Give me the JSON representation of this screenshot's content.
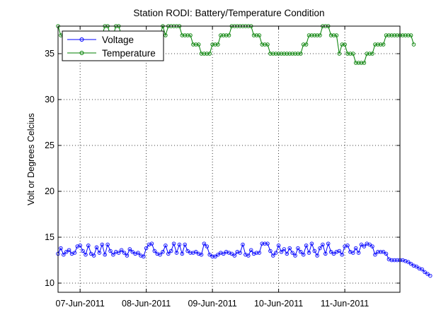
{
  "chart_data": {
    "type": "line",
    "title": "Station RODI: Battery/Temperature Condition",
    "xlabel": "",
    "ylabel": "Volt or Degrees Celcius",
    "x_axis": {
      "kind": "date",
      "range": [
        "2011-06-06 16:00",
        "2011-06-11 20:00"
      ],
      "ticks": [
        {
          "date": "2011-06-07",
          "label": "07-Jun-2011"
        },
        {
          "date": "2011-06-08",
          "label": "08-Jun-2011"
        },
        {
          "date": "2011-06-09",
          "label": "09-Jun-2011"
        },
        {
          "date": "2011-06-10",
          "label": "10-Jun-2011"
        },
        {
          "date": "2011-06-11",
          "label": "11-Jun-2011"
        }
      ]
    },
    "ylim": [
      9,
      38
    ],
    "yticks": [
      10,
      15,
      20,
      25,
      30,
      35
    ],
    "grid": true,
    "grid_style": "dotted",
    "legend_position": "top-left",
    "sampling": {
      "start": "2011-06-06 16:00",
      "step_hours": 1
    },
    "series": [
      {
        "name": "Voltage",
        "color": "#0000ff",
        "marker": "circle",
        "values": [
          13.2,
          13.8,
          13.1,
          13.4,
          13.6,
          13.2,
          13.3,
          14.0,
          14.1,
          13.5,
          13.1,
          14.1,
          13.2,
          13.0,
          13.9,
          13.3,
          14.2,
          13.1,
          14.2,
          13.5,
          13.1,
          13.4,
          13.3,
          13.6,
          13.3,
          13.0,
          13.7,
          13.4,
          13.2,
          13.3,
          13.0,
          12.9,
          13.8,
          14.2,
          14.3,
          13.5,
          13.2,
          13.1,
          13.4,
          14.1,
          13.2,
          13.5,
          14.3,
          13.3,
          14.2,
          13.2,
          14.2,
          13.5,
          13.3,
          13.3,
          13.4,
          13.2,
          13.1,
          14.3,
          14.0,
          13.1,
          12.9,
          12.9,
          13.1,
          13.3,
          13.2,
          13.4,
          13.3,
          13.2,
          13.0,
          13.4,
          13.3,
          14.2,
          13.1,
          13.0,
          13.6,
          13.2,
          13.3,
          13.3,
          14.3,
          14.3,
          14.3,
          13.5,
          13.0,
          13.3,
          14.1,
          13.4,
          13.7,
          13.2,
          13.8,
          13.3,
          13.0,
          13.8,
          13.4,
          13.1,
          14.1,
          13.3,
          14.3,
          13.5,
          13.0,
          13.8,
          14.2,
          13.2,
          14.3,
          13.4,
          13.2,
          13.4,
          13.5,
          13.1,
          14.0,
          14.1,
          13.4,
          13.3,
          13.8,
          13.3,
          14.2,
          14.0,
          14.3,
          14.2,
          14.0,
          13.1,
          13.4,
          13.4,
          13.4,
          13.2,
          12.6,
          12.5,
          12.5,
          12.5,
          12.5,
          12.5,
          12.4,
          12.3,
          12.1,
          11.9,
          11.8,
          11.6,
          11.5,
          11.2,
          11.0,
          10.8
        ]
      },
      {
        "name": "Temperature",
        "color": "#007f00",
        "marker": "circle",
        "values": [
          38,
          37,
          37,
          37,
          37,
          37,
          37,
          37,
          37,
          37,
          37,
          37,
          37,
          37,
          37,
          37,
          37,
          38,
          38,
          37,
          37,
          38,
          38,
          37,
          37,
          37,
          37,
          37,
          37,
          37,
          37,
          37,
          37,
          37,
          37,
          37,
          37,
          37,
          38,
          37,
          38,
          38,
          38,
          38,
          38,
          37,
          37,
          37,
          37,
          36,
          36,
          36,
          35,
          35,
          35,
          35,
          36,
          36,
          36,
          37,
          37,
          37,
          37,
          38,
          38,
          38,
          38,
          38,
          38,
          38,
          38,
          37,
          37,
          37,
          36,
          36,
          36,
          35,
          35,
          35,
          35,
          35,
          35,
          35,
          35,
          35,
          35,
          35,
          35,
          36,
          36,
          37,
          37,
          37,
          37,
          37,
          38,
          38,
          38,
          37,
          37,
          37,
          35,
          36,
          36,
          35,
          35,
          35,
          34,
          34,
          34,
          34,
          35,
          35,
          35,
          36,
          36,
          36,
          36,
          37,
          37,
          37,
          37,
          37,
          37,
          37,
          37,
          37,
          37,
          36
        ]
      }
    ]
  }
}
